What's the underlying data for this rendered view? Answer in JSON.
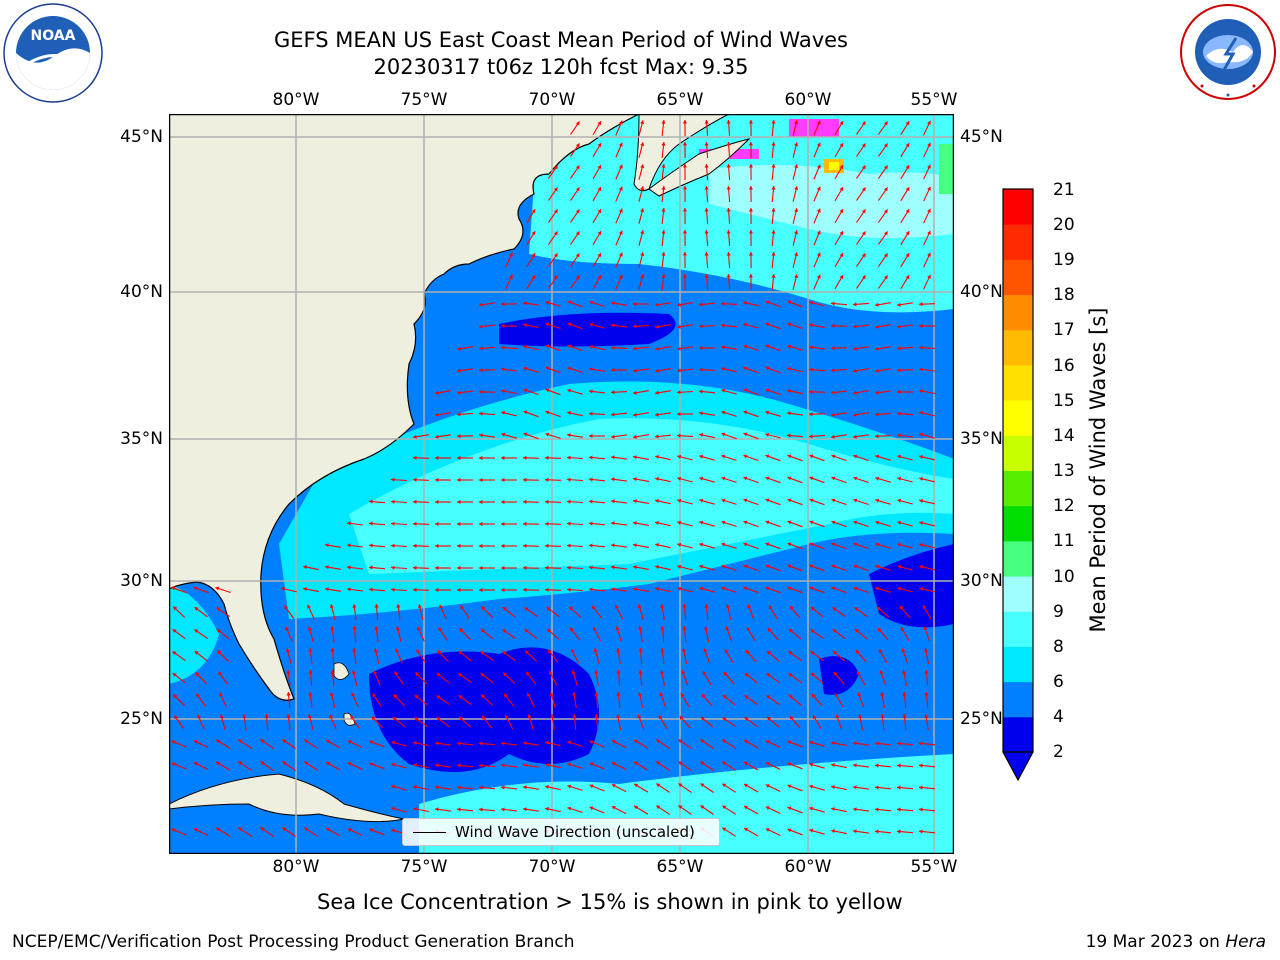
{
  "header": {
    "title": "GEFS MEAN US East Coast Mean Period of Wind Waves",
    "subtitle": "20230317 t06z 120h fcst   Max: 9.35"
  },
  "logos": {
    "noaa": {
      "text": "NOAA",
      "ring_text": "NATIONAL OCEANIC AND ATMOSPHERIC ADMINISTRATION · U.S. DEPARTMENT OF COMMERCE"
    },
    "nws": {
      "ring_text": "NATIONAL WEATHER SERVICE"
    }
  },
  "map": {
    "lon_ticks": [
      "80°W",
      "75°W",
      "70°W",
      "65°W",
      "60°W",
      "55°W"
    ],
    "lat_ticks": [
      "45°N",
      "40°N",
      "35°N",
      "30°N",
      "25°N"
    ],
    "legend_label": "Wind Wave Direction (unscaled)",
    "arrow_color": "#ff0000",
    "land_color": "#efefdf",
    "grid_color": "#b0b0b0"
  },
  "colorbar": {
    "label": "Mean Period of Wind Waves [s]",
    "ticks": [
      "21",
      "20",
      "19",
      "18",
      "17",
      "16",
      "15",
      "14",
      "13",
      "12",
      "11",
      "10",
      "9",
      "8",
      "6",
      "4",
      "2"
    ],
    "colors": [
      "#0000ee",
      "#0080ff",
      "#00e8ff",
      "#47ffff",
      "#9fffff",
      "#47ff7f",
      "#00dd00",
      "#55ee00",
      "#c8ff00",
      "#ffff00",
      "#ffe000",
      "#ffbb00",
      "#ff8c00",
      "#ff5500",
      "#ff2a00",
      "#ff0000"
    ]
  },
  "footer": {
    "note": "Sea Ice Concentration > 15% is shown in pink to yellow",
    "credit": "NCEP/EMC/Verification Post Processing Product Generation Branch",
    "date": "19 Mar 2023 on",
    "machine": "Hera"
  }
}
